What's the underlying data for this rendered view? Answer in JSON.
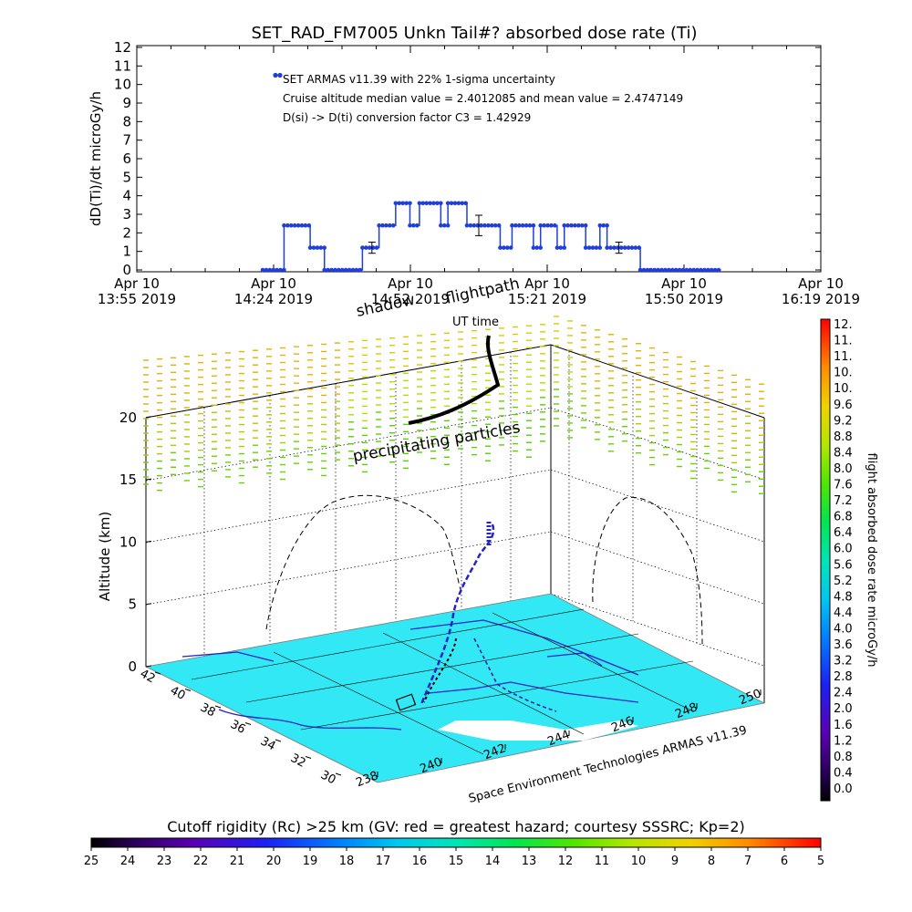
{
  "chart_data": [
    {
      "type": "scatter",
      "title": "SET_RAD_FM7005  Unkn Tail#? absorbed dose rate (Ti)",
      "ylabel": "dD(Ti)/dt microGy/h",
      "ylim": [
        0,
        12
      ],
      "yticks": [
        "0",
        "1",
        "2",
        "3",
        "4",
        "5",
        "6",
        "7",
        "8",
        "9",
        "10",
        "11",
        "12"
      ],
      "xticks": [
        {
          "line1": "Apr 10",
          "line2": "13:55 2019"
        },
        {
          "line1": "Apr 10",
          "line2": "14:24 2019"
        },
        {
          "line1": "Apr 10",
          "line2": "14:52 2019"
        },
        {
          "line1": "Apr 10",
          "line2": "15:21 2019"
        },
        {
          "line1": "Apr 10",
          "line2": "15:50 2019"
        },
        {
          "line1": "Apr 10",
          "line2": "16:19 2019"
        }
      ],
      "xlim_minutes": [
        0,
        144
      ],
      "annotations": [
        "SET ARMAS v11.39 with 22% 1-sigma uncertainty",
        "Cruise altitude median value = 2.4012085 and mean value = 2.4747149",
        "D(si) -> D(ti) conversion factor C3 = 1.42929"
      ],
      "series_color": "#1f3fdc",
      "steps": [
        {
          "t0": 26.5,
          "t1": 31,
          "y": 0
        },
        {
          "t0": 31,
          "t1": 36.5,
          "y": 2.4
        },
        {
          "t0": 36.5,
          "t1": 39.5,
          "y": 1.2
        },
        {
          "t0": 39.5,
          "t1": 47.5,
          "y": 0
        },
        {
          "t0": 47.5,
          "t1": 51,
          "y": 1.2
        },
        {
          "t0": 51,
          "t1": 54.5,
          "y": 2.4
        },
        {
          "t0": 54.5,
          "t1": 57.5,
          "y": 3.6
        },
        {
          "t0": 57.5,
          "t1": 59.5,
          "y": 2.4
        },
        {
          "t0": 59.5,
          "t1": 64,
          "y": 3.6
        },
        {
          "t0": 64,
          "t1": 65.5,
          "y": 2.4
        },
        {
          "t0": 65.5,
          "t1": 69.5,
          "y": 3.6
        },
        {
          "t0": 69.5,
          "t1": 76.5,
          "y": 2.4
        },
        {
          "t0": 76.5,
          "t1": 79,
          "y": 1.2
        },
        {
          "t0": 79,
          "t1": 83.5,
          "y": 2.4
        },
        {
          "t0": 83.5,
          "t1": 85,
          "y": 1.2
        },
        {
          "t0": 85,
          "t1": 88.5,
          "y": 2.4
        },
        {
          "t0": 88.5,
          "t1": 90,
          "y": 1.2
        },
        {
          "t0": 90,
          "t1": 94.5,
          "y": 2.4
        },
        {
          "t0": 94.5,
          "t1": 97.5,
          "y": 1.2
        },
        {
          "t0": 97.5,
          "t1": 99,
          "y": 2.4
        },
        {
          "t0": 99,
          "t1": 106,
          "y": 1.2
        },
        {
          "t0": 106,
          "t1": 123,
          "y": 0
        }
      ],
      "legend_marker_y": 10.5,
      "error_bars": [
        {
          "t": 49.5,
          "y": 1.2,
          "err": 0.3
        },
        {
          "t": 72,
          "y": 2.4,
          "err": 0.55
        },
        {
          "t": 101.5,
          "y": 1.2,
          "err": 0.3
        }
      ]
    },
    {
      "type": "scatter",
      "ylabel": "Altitude (km)",
      "yticks": [
        "0",
        "5",
        "10",
        "15",
        "20"
      ],
      "zlim": [
        0,
        20
      ],
      "lat_ticks": [
        "42",
        "40",
        "38",
        "36",
        "34",
        "32",
        "30"
      ],
      "lon_ticks": [
        "238",
        "240",
        "242",
        "244",
        "246",
        "248",
        "250"
      ],
      "annotations": {
        "shadow": "shadow",
        "flightpath": "flightpath",
        "ut_time": "UT time",
        "precipitating": "precipitating particles",
        "credit": "Space Environment Technologies ARMAS v11.39"
      },
      "ground_color": "#32e8f4",
      "track_color": "#2424c8"
    },
    {
      "type": "heatmap",
      "title": "flight absorbed dose rate microGy/h",
      "orientation": "vertical",
      "range": [
        0,
        12
      ],
      "labels": [
        "12.",
        "11.",
        "11.",
        "10.",
        "10.",
        "9.6",
        "9.2",
        "8.8",
        "8.4",
        "8.0",
        "7.6",
        "7.2",
        "6.8",
        "6.4",
        "6.0",
        "5.6",
        "5.2",
        "4.8",
        "4.4",
        "4.0",
        "3.6",
        "3.2",
        "2.8",
        "2.4",
        "2.0",
        "1.6",
        "1.2",
        "0.8",
        "0.4",
        "0.0"
      ]
    },
    {
      "type": "heatmap",
      "title": "Cutoff rigidity (Rc) >25 km (GV: red = greatest hazard; courtesy SSSRC; Kp=2)",
      "orientation": "horizontal",
      "labels": [
        "25",
        "24",
        "23",
        "22",
        "21",
        "20",
        "19",
        "18",
        "17",
        "16",
        "15",
        "14",
        "13",
        "12",
        "11",
        "10",
        "9",
        "8",
        "7",
        "6",
        "5"
      ]
    }
  ]
}
